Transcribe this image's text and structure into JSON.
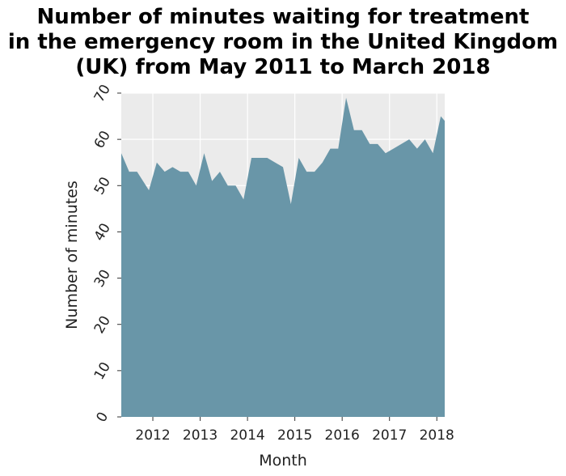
{
  "title_lines": [
    "Number of minutes waiting for treatment",
    "in the emergency room in the United Kingdom",
    "(UK) from May 2011 to March 2018"
  ],
  "chart_data": {
    "type": "area",
    "title": "Number of minutes waiting for treatment in the emergency room in the United Kingdom (UK) from May 2011 to March 2018",
    "xlabel": "Month",
    "ylabel": "Number of minutes",
    "xlim": [
      "2011-05",
      "2018-03"
    ],
    "ylim": [
      0,
      70
    ],
    "x_ticks": [
      "2012",
      "2013",
      "2014",
      "2015",
      "2016",
      "2017",
      "2018"
    ],
    "y_ticks": [
      "0",
      "10",
      "20",
      "30",
      "40",
      "50",
      "60",
      "70"
    ],
    "grid": true,
    "fill_color": "#6996a8",
    "background_color": "#ebebeb",
    "x": [
      "2011-05",
      "2011-07",
      "2011-09",
      "2011-12",
      "2012-02",
      "2012-04",
      "2012-06",
      "2012-08",
      "2012-10",
      "2012-12",
      "2013-02",
      "2013-04",
      "2013-06",
      "2013-08",
      "2013-10",
      "2013-12",
      "2014-02",
      "2014-04",
      "2014-06",
      "2014-08",
      "2014-10",
      "2014-12",
      "2015-02",
      "2015-04",
      "2015-06",
      "2015-08",
      "2015-10",
      "2015-12",
      "2016-02",
      "2016-04",
      "2016-06",
      "2016-08",
      "2016-10",
      "2016-12",
      "2017-02",
      "2017-04",
      "2017-06",
      "2017-08",
      "2017-10",
      "2017-12",
      "2018-02",
      "2018-03"
    ],
    "values": [
      57,
      53,
      53,
      49,
      55,
      53,
      54,
      53,
      53,
      50,
      57,
      51,
      53,
      50,
      50,
      47,
      56,
      56,
      56,
      55,
      54,
      46,
      56,
      53,
      53,
      55,
      58,
      58,
      69,
      62,
      62,
      59,
      59,
      57,
      58,
      59,
      60,
      58,
      60,
      57,
      65,
      64
    ]
  }
}
